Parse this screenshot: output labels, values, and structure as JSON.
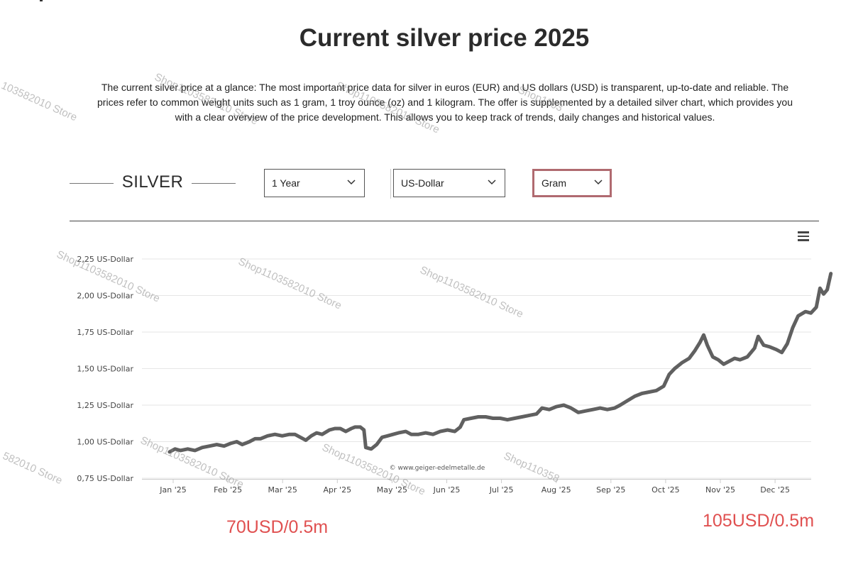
{
  "page": {
    "title": "Current silver price 2025",
    "intro": "The current silver price at a glance: The most important price data for silver in euros (EUR) and US dollars (USD) is transparent, up-to-date and reliable. The prices refer to common weight units such as 1 gram, 1 troy ounce (oz) and 1 kilogram. The offer is supplemented by a detailed silver chart, which provides you with a clear overview of the price development. This allows you to keep track of trends, daily changes and historical values."
  },
  "controls": {
    "metal_label": "SILVER",
    "period": "1 Year",
    "currency": "US-Dollar",
    "unit": "Gram"
  },
  "annotations": {
    "left_note": "70USD/0.5m",
    "right_note": "105USD/0.5m"
  },
  "watermarks": [
    "103582010 Store",
    "Shop1103582010 Store",
    "Shop1103582010 Store",
    "Shop1103",
    "Shop1103582010 Store",
    "Shop1103582010 Store",
    "Shop1103582010 Store",
    "582010 Store",
    "Shop1103582010 Store",
    "Shop1103582010 Store",
    "Shop110358"
  ],
  "icons": {
    "menu": "hamburger-menu-icon",
    "dropdown": "chevron-down-icon"
  },
  "colors": {
    "line": "#606060",
    "note": "#e05050",
    "active_border": "#b06a70"
  },
  "chart_data": {
    "type": "line",
    "title": "",
    "xlabel": "",
    "ylabel": "",
    "credit": "© www.geiger-edelmetalle.de",
    "yticks": [
      "0,75 US-Dollar",
      "1,00 US-Dollar",
      "1,25 US-Dollar",
      "1,50 US-Dollar",
      "1,75 US-Dollar",
      "2,00 US-Dollar",
      "2,25 US-Dollar"
    ],
    "ytick_values": [
      0.75,
      1.0,
      1.25,
      1.5,
      1.75,
      2.0,
      2.25
    ],
    "xticks": [
      "Jan '25",
      "Feb '25",
      "Mar '25",
      "Apr '25",
      "May '25",
      "Jun '25",
      "Jul '25",
      "Aug '25",
      "Sep '25",
      "Oct '25",
      "Nov '25",
      "Dec '25"
    ],
    "ylim": [
      0.75,
      2.25
    ],
    "grid": true,
    "series": [
      {
        "values": [
          [
            -2,
            0.93
          ],
          [
            1,
            0.95
          ],
          [
            4,
            0.94
          ],
          [
            8,
            0.95
          ],
          [
            12,
            0.94
          ],
          [
            16,
            0.96
          ],
          [
            20,
            0.97
          ],
          [
            24,
            0.98
          ],
          [
            28,
            0.97
          ],
          [
            32,
            0.99
          ],
          [
            35,
            1.0
          ],
          [
            38,
            0.98
          ],
          [
            42,
            1.0
          ],
          [
            45,
            1.02
          ],
          [
            48,
            1.02
          ],
          [
            52,
            1.04
          ],
          [
            56,
            1.05
          ],
          [
            60,
            1.04
          ],
          [
            64,
            1.05
          ],
          [
            67,
            1.05
          ],
          [
            70,
            1.03
          ],
          [
            73,
            1.01
          ],
          [
            76,
            1.04
          ],
          [
            79,
            1.06
          ],
          [
            82,
            1.05
          ],
          [
            86,
            1.08
          ],
          [
            89,
            1.09
          ],
          [
            92,
            1.09
          ],
          [
            95,
            1.07
          ],
          [
            98,
            1.09
          ],
          [
            100,
            1.1
          ],
          [
            103,
            1.1
          ],
          [
            105,
            1.08
          ],
          [
            106,
            0.96
          ],
          [
            109,
            0.95
          ],
          [
            112,
            0.98
          ],
          [
            115,
            1.03
          ],
          [
            118,
            1.04
          ],
          [
            121,
            1.05
          ],
          [
            124,
            1.06
          ],
          [
            128,
            1.07
          ],
          [
            131,
            1.05
          ],
          [
            135,
            1.05
          ],
          [
            139,
            1.06
          ],
          [
            143,
            1.05
          ],
          [
            147,
            1.07
          ],
          [
            151,
            1.08
          ],
          [
            155,
            1.07
          ],
          [
            158,
            1.1
          ],
          [
            160,
            1.15
          ],
          [
            164,
            1.16
          ],
          [
            168,
            1.17
          ],
          [
            172,
            1.17
          ],
          [
            176,
            1.16
          ],
          [
            180,
            1.16
          ],
          [
            184,
            1.15
          ],
          [
            188,
            1.16
          ],
          [
            192,
            1.17
          ],
          [
            196,
            1.18
          ],
          [
            200,
            1.19
          ],
          [
            203,
            1.23
          ],
          [
            207,
            1.22
          ],
          [
            211,
            1.24
          ],
          [
            215,
            1.25
          ],
          [
            219,
            1.23
          ],
          [
            223,
            1.2
          ],
          [
            227,
            1.21
          ],
          [
            231,
            1.22
          ],
          [
            235,
            1.23
          ],
          [
            239,
            1.22
          ],
          [
            243,
            1.23
          ],
          [
            246,
            1.25
          ],
          [
            250,
            1.28
          ],
          [
            254,
            1.31
          ],
          [
            258,
            1.33
          ],
          [
            262,
            1.34
          ],
          [
            266,
            1.35
          ],
          [
            270,
            1.38
          ],
          [
            273,
            1.46
          ],
          [
            276,
            1.5
          ],
          [
            280,
            1.54
          ],
          [
            284,
            1.57
          ],
          [
            287,
            1.62
          ],
          [
            290,
            1.68
          ],
          [
            292,
            1.73
          ],
          [
            294,
            1.66
          ],
          [
            297,
            1.58
          ],
          [
            300,
            1.56
          ],
          [
            303,
            1.53
          ],
          [
            306,
            1.55
          ],
          [
            309,
            1.57
          ],
          [
            312,
            1.56
          ],
          [
            316,
            1.58
          ],
          [
            320,
            1.64
          ],
          [
            322,
            1.72
          ],
          [
            325,
            1.66
          ],
          [
            328,
            1.65
          ],
          [
            332,
            1.63
          ],
          [
            335,
            1.61
          ],
          [
            338,
            1.67
          ],
          [
            341,
            1.78
          ],
          [
            344,
            1.86
          ],
          [
            348,
            1.89
          ],
          [
            351,
            1.88
          ],
          [
            354,
            1.92
          ],
          [
            356,
            2.05
          ],
          [
            358,
            2.01
          ],
          [
            360,
            2.04
          ],
          [
            362,
            2.15
          ]
        ]
      }
    ]
  }
}
